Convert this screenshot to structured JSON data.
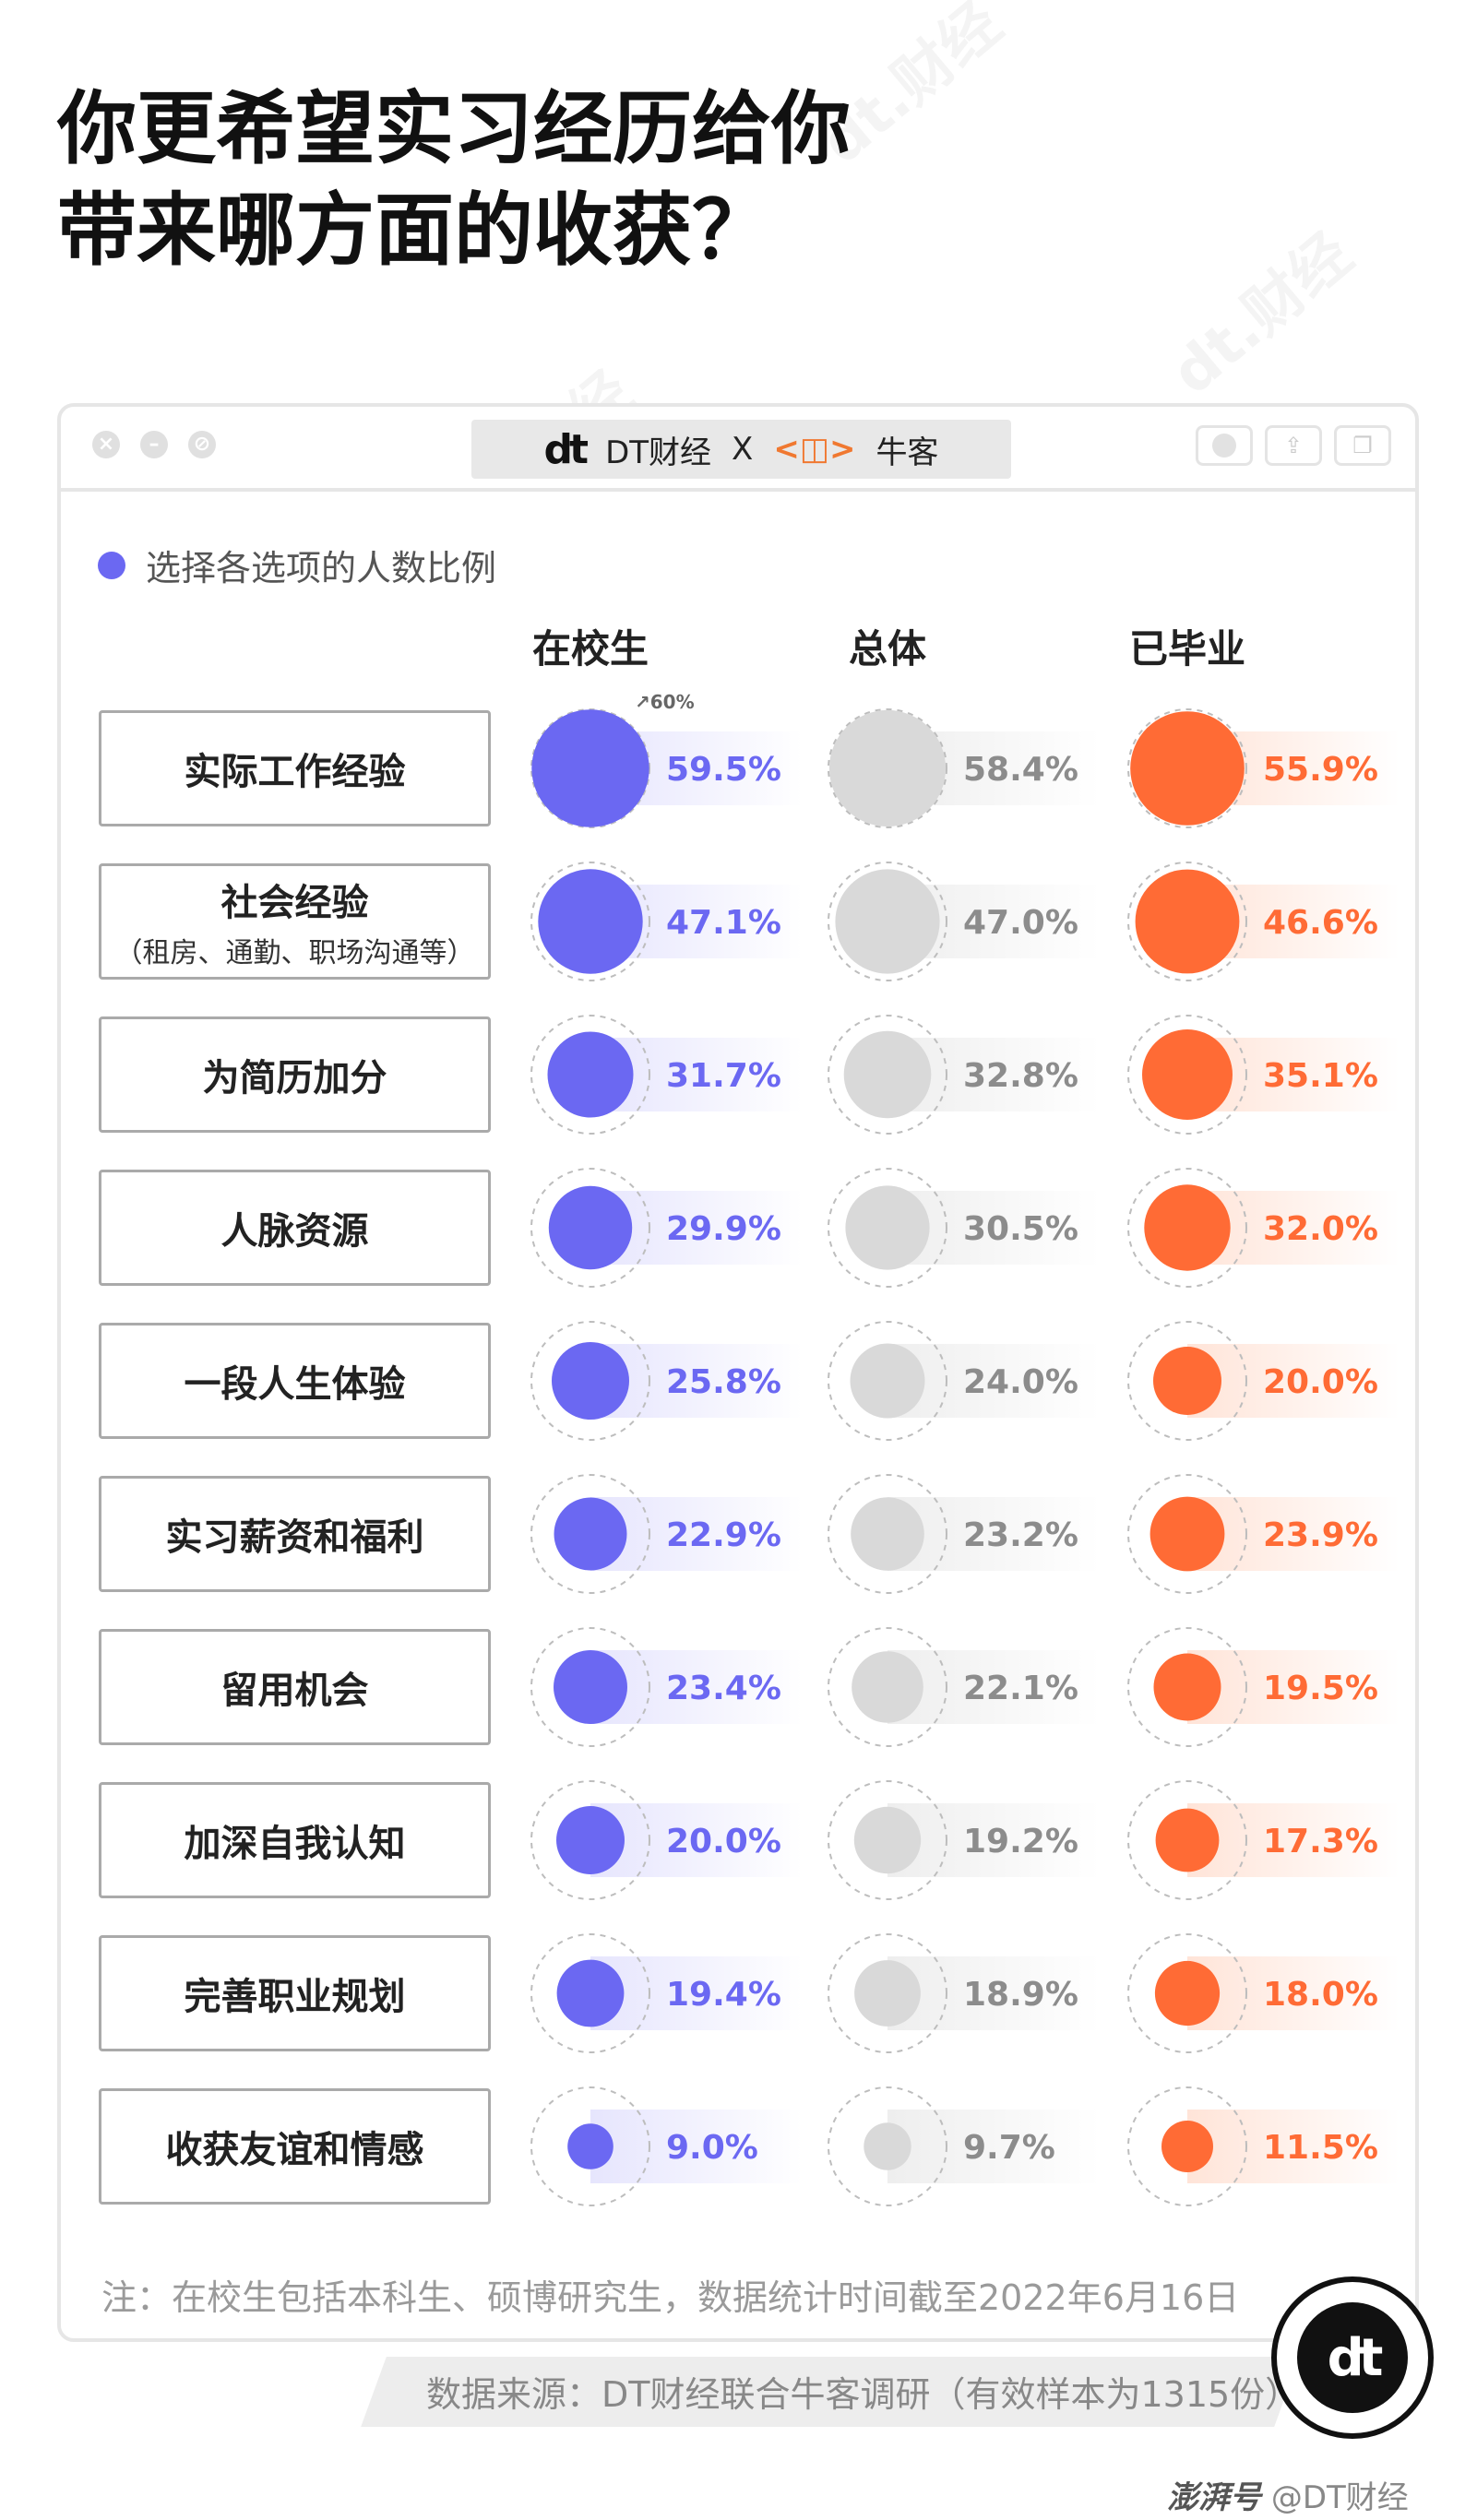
{
  "title_lines": [
    "你更希望实习经历给你",
    "带来哪方面的收获？"
  ],
  "window": {
    "brand_left": "DT财经",
    "brand_sep": "X",
    "brand_right": "牛客"
  },
  "legend_label": "选择各选项的人数比例",
  "max_label": "60%",
  "colors": {
    "student": "#6b68f2",
    "overall": "#d9d9d9",
    "graduate": "#ff6b35",
    "student_text": "#6b68f2",
    "overall_text": "#8c8c8c",
    "graduate_text": "#ff6b35"
  },
  "chart_data": {
    "type": "bubble-matrix",
    "series": [
      {
        "name": "在校生",
        "values": [
          59.5,
          47.1,
          31.7,
          29.9,
          25.8,
          22.9,
          23.4,
          20.0,
          19.4,
          9.0
        ]
      },
      {
        "name": "总体",
        "values": [
          58.4,
          47.0,
          32.8,
          30.5,
          24.0,
          23.2,
          22.1,
          19.2,
          18.9,
          9.7
        ]
      },
      {
        "name": "已毕业",
        "values": [
          55.9,
          46.6,
          35.1,
          32.0,
          20.0,
          23.9,
          19.5,
          17.3,
          18.0,
          11.5
        ]
      }
    ],
    "categories": [
      {
        "name": "实际工作经验",
        "sub": ""
      },
      {
        "name": "社会经验",
        "sub": "（租房、通勤、职场沟通等）"
      },
      {
        "name": "为简历加分",
        "sub": ""
      },
      {
        "name": "人脉资源",
        "sub": ""
      },
      {
        "name": "一段人生体验",
        "sub": ""
      },
      {
        "name": "实习薪资和福利",
        "sub": ""
      },
      {
        "name": "留用机会",
        "sub": ""
      },
      {
        "name": "加深自我认知",
        "sub": ""
      },
      {
        "name": "完善职业规划",
        "sub": ""
      },
      {
        "name": "收获友谊和情感",
        "sub": ""
      }
    ],
    "max_value": 60
  },
  "note": "注：在校生包括本科生、硕博研究生，数据统计时间截至2022年6月16日",
  "source": "数据来源：DT财经联合牛客调研（有效样本为1315份）",
  "badge_logo": "dt",
  "footer": {
    "platform": "澎湃号",
    "account": "@DT财经"
  }
}
